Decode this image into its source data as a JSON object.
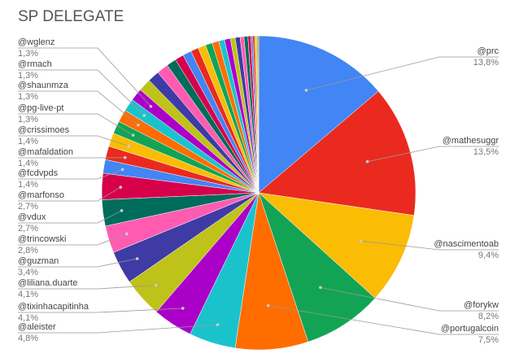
{
  "chart_data": {
    "type": "pie",
    "title": "SP DELEGATE",
    "categories": [
      "@prc",
      "@mathesuggr",
      "@nascimentoab",
      "@forykw",
      "@portugalcoin",
      "@aleister",
      "@tixinhacapitinha",
      "@liliana.duarte",
      "@guzman",
      "@trincowski",
      "@vdux",
      "@marfonso",
      "@fcdvpds",
      "@mafaldation",
      "@crissimoes",
      "@pg-live-pt",
      "@shaunmza",
      "@rmach",
      "@wglenz",
      null,
      null,
      null,
      null,
      null,
      null,
      null,
      null,
      null,
      null,
      null,
      null,
      null,
      null,
      null,
      null,
      null,
      null,
      null,
      null,
      null,
      null
    ],
    "values": [
      13.8,
      13.5,
      9.4,
      8.2,
      7.5,
      4.8,
      4.1,
      4.1,
      3.4,
      2.8,
      2.7,
      2.7,
      1.4,
      1.4,
      1.4,
      1.3,
      1.3,
      1.3,
      1.3,
      1.3,
      1.2,
      1.2,
      1.0,
      0.9,
      0.9,
      0.8,
      0.8,
      0.7,
      0.7,
      0.6,
      0.6,
      0.5,
      0.5,
      0.4,
      0.4,
      0.3,
      0.2,
      0.2,
      0.2,
      0.1,
      0.1
    ],
    "value_labels": [
      "13,8%",
      "13,5%",
      "9,4%",
      "8,2%",
      "7,5%",
      "4,8%",
      "4,1%",
      "4,1%",
      "3,4%",
      "2,8%",
      "2,7%",
      "2,7%",
      "1,4%",
      "1,4%",
      "1,4%",
      "1,3%",
      "1,3%",
      "1,3%",
      "1,3%",
      null,
      null,
      null,
      null,
      null,
      null,
      null,
      null,
      null,
      null,
      null,
      null,
      null,
      null,
      null,
      null,
      null,
      null,
      null,
      null,
      null,
      null
    ],
    "colors": [
      "#4285f4",
      "#ea2a1f",
      "#fbbc04",
      "#12a454",
      "#ff6d01",
      "#1ac3cc",
      "#ab00c8",
      "#bfc218",
      "#3f3ba5",
      "#ff5cb1",
      "#006c5b",
      "#d6004b",
      "#4285f4",
      "#ea2a1f",
      "#fbbc04",
      "#12a454",
      "#ff6d01",
      "#1ac3cc",
      "#ab00c8",
      "#bfc218",
      "#3f3ba5",
      "#ff5cb1",
      "#006c5b",
      "#d6004b",
      "#4285f4",
      "#ea2a1f",
      "#fbbc04",
      "#12a454",
      "#ff6d01",
      "#1ac3cc",
      "#ab00c8",
      "#bfc218",
      "#3f3ba5",
      "#ff5cb1",
      "#006c5b",
      "#d6004b",
      "#4285f4",
      "#ea2a1f",
      "#fbbc04",
      "#12a454",
      "#ff6d01"
    ]
  }
}
